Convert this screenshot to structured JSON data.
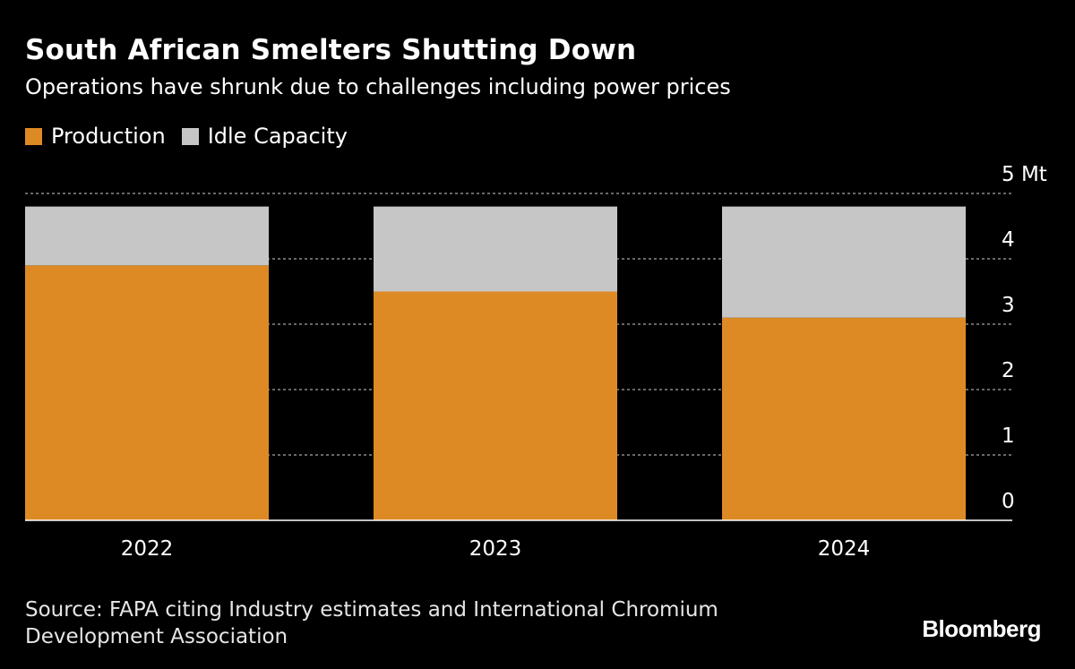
{
  "header": {
    "title": "South African Smelters Shutting Down",
    "subtitle": "Operations have shrunk due to challenges including power prices"
  },
  "legend": {
    "items": [
      {
        "label": "Production",
        "color": "#dd8a25"
      },
      {
        "label": "Idle Capacity",
        "color": "#c6c6c6"
      }
    ]
  },
  "chart_data": {
    "type": "bar",
    "stacked": true,
    "title": "South African Smelters Shutting Down",
    "subtitle": "Operations have shrunk due to challenges including power prices",
    "categories": [
      "2022",
      "2023",
      "2024"
    ],
    "series": [
      {
        "name": "Production",
        "color": "#dd8a25",
        "values": [
          3.9,
          3.5,
          3.1
        ]
      },
      {
        "name": "Idle Capacity",
        "color": "#c6c6c6",
        "values": [
          0.9,
          1.3,
          1.7
        ]
      }
    ],
    "ylim": [
      0,
      5
    ],
    "yticks": [
      0,
      1,
      2,
      3,
      4,
      5
    ],
    "ytick_labels": [
      "0",
      "1",
      "2",
      "3",
      "4",
      "5 Mt"
    ],
    "yaxis_side": "right",
    "grid": "dotted horizontal",
    "xlabel": "",
    "ylabel": ""
  },
  "footer": {
    "source": "Source: FAPA citing Industry estimates and International Chromium Development Association",
    "brand": "Bloomberg"
  }
}
